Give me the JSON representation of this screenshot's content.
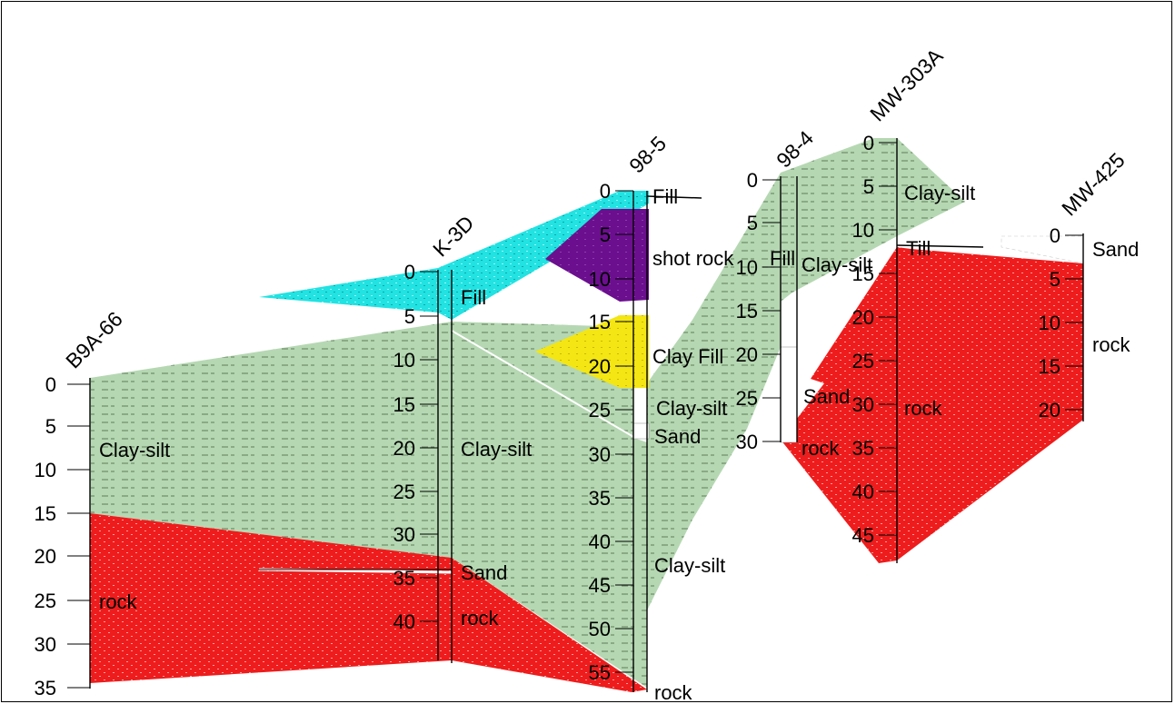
{
  "colors": {
    "clay_silt": "#b5d8b2",
    "rock": "#ee1c1c",
    "fill": "#22e2e2",
    "shot_rock": "#6b0f8e",
    "clay_fill": "#f3e614",
    "sand": "#ffffff",
    "hatch": "#6f8f6c"
  },
  "boreholes": [
    {
      "id": "B9A-66",
      "ticks": [
        "0",
        "5",
        "10",
        "15",
        "20",
        "25",
        "30",
        "35"
      ]
    },
    {
      "id": "K-3D",
      "ticks": [
        "0",
        "5",
        "10",
        "15",
        "20",
        "25",
        "30",
        "35",
        "40"
      ]
    },
    {
      "id": "98-5",
      "ticks": [
        "0",
        "5",
        "10",
        "15",
        "20",
        "25",
        "30",
        "35",
        "40",
        "45",
        "50",
        "55"
      ]
    },
    {
      "id": "98-4",
      "ticks": [
        "0",
        "5",
        "10",
        "15",
        "20",
        "25",
        "30"
      ]
    },
    {
      "id": "MW-303A",
      "ticks": [
        "0",
        "5",
        "10",
        "15",
        "20",
        "25",
        "30",
        "35",
        "40",
        "45"
      ]
    },
    {
      "id": "MW-425",
      "ticks": [
        "0",
        "5",
        "10",
        "15",
        "20"
      ]
    }
  ],
  "layer_labels": {
    "b9a_clay": "Clay-silt",
    "b9a_rock": "rock",
    "k3d_fill": "Fill",
    "k3d_clay": "Clay-silt",
    "k3d_sand": "Sand",
    "k3d_rock": "rock",
    "p985_fill": "Fill",
    "p985_shot": "shot rock",
    "p985_clayfill": "Clay Fill",
    "p985_clay_a": "Clay-silt",
    "p985_sand": "Sand",
    "p985_clay_b": "Clay-silt",
    "p985_rock": "rock",
    "p984_fill": "Fill",
    "p984_clay": "Clay-silt",
    "p984_sand": "Sand",
    "p984_rock": "rock",
    "mw303_clay": "Clay-silt",
    "mw303_till": "Till",
    "mw303_rock": "rock",
    "mw425_sand": "Sand",
    "mw425_rock": "rock"
  }
}
